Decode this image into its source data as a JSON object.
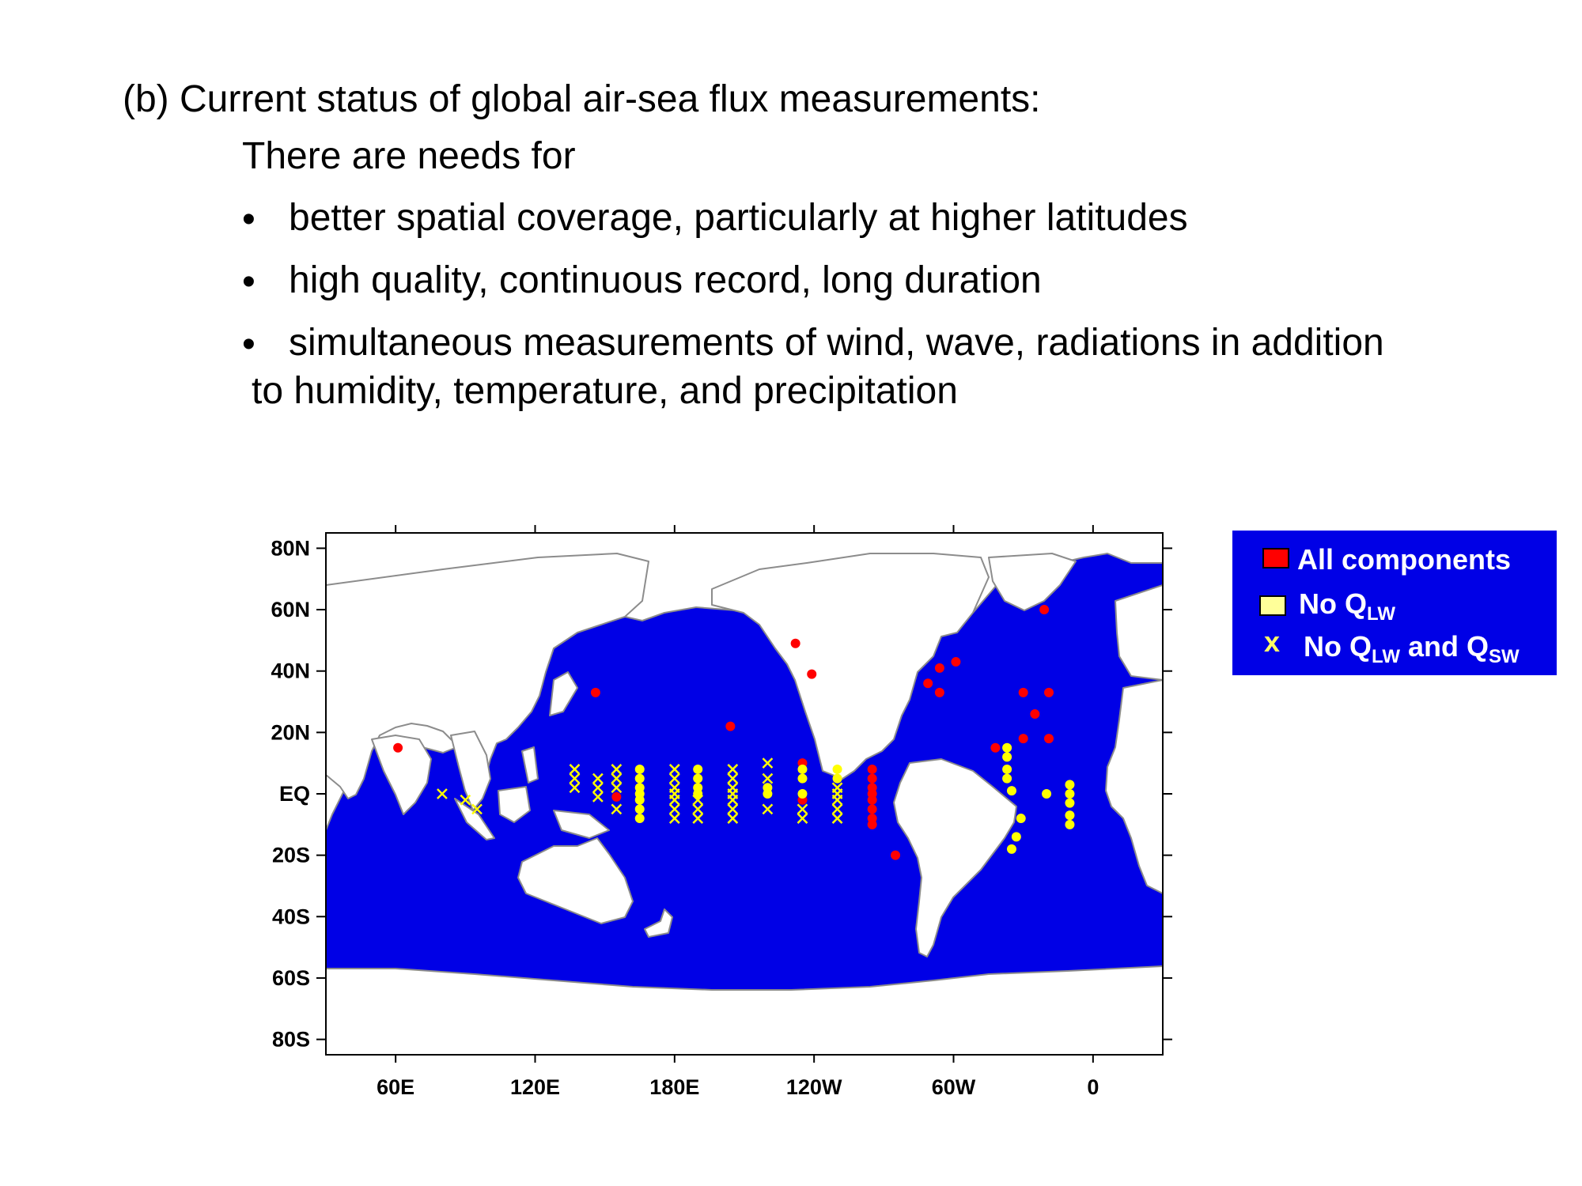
{
  "slide": {
    "heading": "(b) Current status of global air-sea flux measurements:",
    "intro": "There are needs for",
    "bullet_symbol": "•",
    "bullets": [
      "better spatial coverage, particularly at higher latitudes",
      "high quality, continuous record, long duration",
      "simultaneous measurements of wind, wave, radiations in addition"
    ],
    "bullet3_continuation": "to humidity, temperature, and precipitation"
  },
  "map": {
    "ocean_color": "#0000e6",
    "land_color": "#ffffff",
    "coast_color": "#8c8c8c",
    "lon_ticks": [
      "60E",
      "120E",
      "180E",
      "120W",
      "60W",
      "0"
    ],
    "lat_ticks": [
      "80N",
      "60N",
      "40N",
      "20N",
      "EQ",
      "20S",
      "40S",
      "60S",
      "80S"
    ],
    "lon_tick_values": [
      60,
      120,
      180,
      240,
      300,
      360
    ],
    "lat_tick_values": [
      80,
      60,
      40,
      20,
      0,
      -20,
      -40,
      -60,
      -80
    ],
    "lon_range": [
      30,
      390
    ],
    "lat_range": [
      -85,
      85
    ]
  },
  "legend": {
    "all_components": "All components",
    "no_qlw_prefix": "No Q",
    "no_qlw_sub": "LW",
    "x_symbol": "x",
    "no_qlw_qsw_prefix": "No Q",
    "no_qlw_qsw_sub1": "LW",
    "no_qlw_qsw_mid": " and Q",
    "no_qlw_qsw_sub2": "SW",
    "colors": {
      "red": "#ff0000",
      "yellow": "#ffff00",
      "box_bg": "#0000e6"
    }
  },
  "stations": {
    "all_components": [
      [
        61,
        15
      ],
      [
        146,
        33
      ],
      [
        204,
        22
      ],
      [
        232,
        49
      ],
      [
        239,
        39
      ],
      [
        289,
        36
      ],
      [
        294,
        41
      ],
      [
        294,
        33
      ],
      [
        301,
        43
      ],
      [
        318,
        15
      ],
      [
        330,
        18
      ],
      [
        330,
        33
      ],
      [
        335,
        26
      ],
      [
        341,
        33
      ],
      [
        341,
        18
      ],
      [
        339,
        60
      ],
      [
        155,
        -1
      ],
      [
        235,
        -2
      ],
      [
        235,
        10
      ],
      [
        265,
        8
      ],
      [
        265,
        5
      ],
      [
        265,
        2
      ],
      [
        265,
        0
      ],
      [
        265,
        -2
      ],
      [
        265,
        -5
      ],
      [
        265,
        -8
      ],
      [
        265,
        -10
      ],
      [
        275,
        -20
      ]
    ],
    "no_qlw": [
      [
        323,
        15
      ],
      [
        323,
        12
      ],
      [
        323,
        8
      ],
      [
        323,
        5
      ],
      [
        325,
        1
      ],
      [
        329,
        -8
      ],
      [
        327,
        -14
      ],
      [
        325,
        -18
      ],
      [
        340,
        0
      ],
      [
        350,
        3
      ],
      [
        350,
        0
      ],
      [
        350,
        -3
      ],
      [
        350,
        -7
      ],
      [
        350,
        -10
      ],
      [
        165,
        8
      ],
      [
        165,
        5
      ],
      [
        165,
        2
      ],
      [
        165,
        0
      ],
      [
        165,
        -2
      ],
      [
        165,
        -5
      ],
      [
        165,
        -8
      ],
      [
        190,
        8
      ],
      [
        190,
        5
      ],
      [
        190,
        2
      ],
      [
        190,
        0
      ],
      [
        220,
        2
      ],
      [
        220,
        0
      ],
      [
        235,
        8
      ],
      [
        235,
        5
      ],
      [
        235,
        0
      ],
      [
        250,
        8
      ],
      [
        250,
        5
      ]
    ],
    "no_qlw_qsw": [
      [
        80,
        0
      ],
      [
        90,
        -2
      ],
      [
        95,
        -5
      ],
      [
        137,
        8
      ],
      [
        137,
        5
      ],
      [
        137,
        2
      ],
      [
        147,
        5
      ],
      [
        147,
        2
      ],
      [
        147,
        -1
      ],
      [
        155,
        8
      ],
      [
        155,
        5
      ],
      [
        155,
        2
      ],
      [
        155,
        -5
      ],
      [
        180,
        8
      ],
      [
        180,
        5
      ],
      [
        180,
        2
      ],
      [
        180,
        0
      ],
      [
        180,
        -2
      ],
      [
        180,
        -5
      ],
      [
        180,
        -8
      ],
      [
        190,
        -2
      ],
      [
        190,
        -5
      ],
      [
        190,
        -8
      ],
      [
        205,
        8
      ],
      [
        205,
        5
      ],
      [
        205,
        2
      ],
      [
        205,
        0
      ],
      [
        205,
        -2
      ],
      [
        205,
        -5
      ],
      [
        205,
        -8
      ],
      [
        220,
        10
      ],
      [
        220,
        5
      ],
      [
        220,
        -5
      ],
      [
        235,
        -5
      ],
      [
        235,
        -8
      ],
      [
        250,
        2
      ],
      [
        250,
        0
      ],
      [
        250,
        -2
      ],
      [
        250,
        -5
      ],
      [
        250,
        -8
      ]
    ]
  }
}
